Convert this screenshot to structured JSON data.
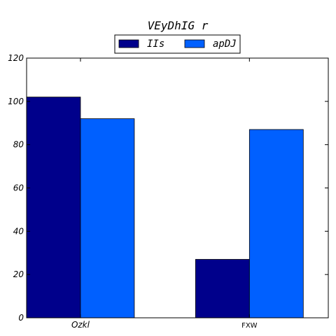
{
  "chart_data": {
    "type": "bar",
    "title": "VEyDhIG r",
    "xlabel": "",
    "ylabel": "",
    "categories": [
      "Ozkl",
      "FXW"
    ],
    "series": [
      {
        "name": "IIs",
        "values": [
          102,
          27
        ],
        "color": "#00008b"
      },
      {
        "name": "apDJ",
        "values": [
          92,
          87
        ],
        "color": "#0060ff"
      }
    ],
    "ylim": [
      0,
      120
    ],
    "yticks": [
      0,
      20,
      40,
      60,
      80,
      100,
      120
    ],
    "grid": false,
    "legend_position": "top-center"
  }
}
